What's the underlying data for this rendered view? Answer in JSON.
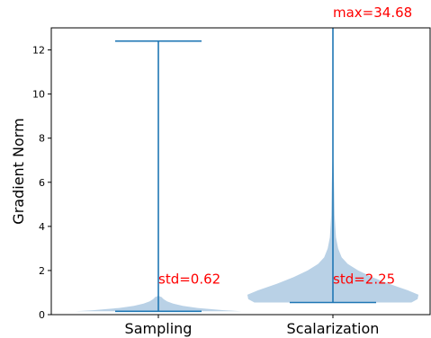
{
  "chart_data": {
    "type": "violin",
    "title": "",
    "xlabel": "",
    "ylabel": "Gradient Norm",
    "ylim": [
      0,
      13
    ],
    "yticks": [
      "0",
      "2",
      "4",
      "6",
      "8",
      "10",
      "12"
    ],
    "yticks_values": [
      0,
      2,
      4,
      6,
      8,
      10,
      12
    ],
    "categories": [
      "Sampling",
      "Scalarization"
    ],
    "colors": {
      "body": "#b9d1e6",
      "line": "#1f77b4",
      "annotation": "#ff0000"
    },
    "series": [
      {
        "category": "Sampling",
        "min": 0.15,
        "max": 12.4,
        "density": [
          [
            0.15,
            0.95
          ],
          [
            0.2,
            0.75
          ],
          [
            0.3,
            0.45
          ],
          [
            0.4,
            0.28
          ],
          [
            0.5,
            0.17
          ],
          [
            0.6,
            0.1
          ],
          [
            0.7,
            0.06
          ],
          [
            0.8,
            0.035
          ],
          [
            0.85,
            0.0
          ]
        ]
      },
      {
        "category": "Scalarization",
        "min": 0.55,
        "max": 34.68,
        "density": [
          [
            0.55,
            0.9
          ],
          [
            0.7,
            0.97
          ],
          [
            0.9,
            0.98
          ],
          [
            1.1,
            0.86
          ],
          [
            1.4,
            0.64
          ],
          [
            1.7,
            0.45
          ],
          [
            2.0,
            0.29
          ],
          [
            2.3,
            0.17
          ],
          [
            2.6,
            0.1
          ],
          [
            3.0,
            0.06
          ],
          [
            3.5,
            0.035
          ],
          [
            4.5,
            0.02
          ],
          [
            6.0,
            0.012
          ],
          [
            7.7,
            0.0
          ]
        ]
      }
    ],
    "annotations": [
      {
        "category": "Sampling",
        "text": "std=0.62",
        "y": 1.6
      },
      {
        "category": "Scalarization",
        "text": "std=2.25",
        "y": 1.6
      },
      {
        "category": "Scalarization",
        "text": "max=34.68",
        "y": 13.7
      }
    ]
  }
}
